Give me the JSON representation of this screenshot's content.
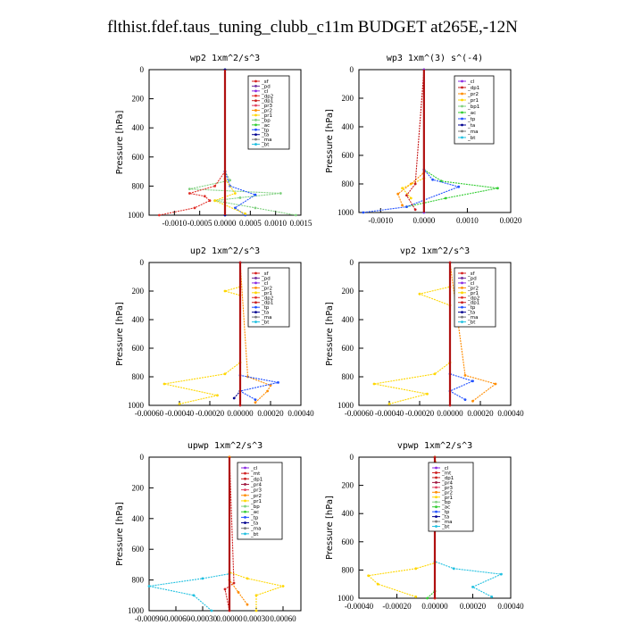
{
  "title": "flthist.fdef.taus_tuning_clubb_c11m  BUDGET at265E,-12N",
  "colors": {
    "sf": "#d62020",
    "pd": "#7030a0",
    "cl": "#8a2be2",
    "dp2": "#e0302a",
    "dp1": "#c81e1e",
    "pr3": "#e04060",
    "pr2": "#ff8c00",
    "pr1": "#ffd700",
    "bp": "#7fd07f",
    "ac": "#32cd32",
    "tp": "#2050ff",
    "ta": "#000090",
    "ma": "#7a7a7a",
    "bt": "#20c0e0",
    "mt": "#d02020",
    "pr4": "#a01840"
  },
  "chart_data": [
    {
      "type": "line",
      "title": "wp2  1xm^2/s^3",
      "ylabel": "Pressure [hPa]",
      "ylim": [
        1000,
        0
      ],
      "xlim": [
        -0.0015,
        0.0015
      ],
      "yticks": [
        "0",
        "200",
        "400",
        "600",
        "800",
        "1000"
      ],
      "xticks": [
        "-0.0010",
        "-0.0005",
        "0.0000",
        "0.0005",
        "0.0010",
        "0.0015"
      ],
      "legend": [
        "_sf",
        "_pd",
        "_cl",
        "_dp2",
        "_dp1",
        "_pr3",
        "_pr2",
        "_pr1",
        "_bp",
        "_ac",
        "_tp",
        "_ta",
        "_ma",
        "_bt"
      ],
      "series": [
        {
          "name": "_bp",
          "values": [
            [
              0.0014,
              1000
            ],
            [
              0.0006,
              950
            ],
            [
              -0.0002,
              900
            ],
            [
              0.0003,
              880
            ],
            [
              0.0011,
              850
            ],
            [
              -0.0007,
              820
            ],
            [
              0.0001,
              760
            ],
            [
              0,
              700
            ],
            [
              0,
              0
            ]
          ]
        },
        {
          "name": "_dp2",
          "values": [
            [
              -0.0013,
              1000
            ],
            [
              -0.0006,
              950
            ],
            [
              -0.0003,
              900
            ],
            [
              -0.0004,
              870
            ],
            [
              -0.0007,
              850
            ],
            [
              -0.0002,
              800
            ],
            [
              0,
              700
            ],
            [
              0,
              0
            ]
          ]
        },
        {
          "name": "_tp",
          "values": [
            [
              0.0004,
              1000
            ],
            [
              0.0002,
              950
            ],
            [
              0.0006,
              860
            ],
            [
              0.0001,
              800
            ],
            [
              0,
              700
            ],
            [
              0,
              0
            ]
          ]
        },
        {
          "name": "_pr1",
          "values": [
            [
              0.0004,
              990
            ],
            [
              -0.0002,
              900
            ],
            [
              0.0002,
              850
            ],
            [
              0,
              750
            ],
            [
              0,
              0
            ]
          ]
        },
        {
          "name": "_bt",
          "values": [
            [
              0,
              1000
            ],
            [
              0,
              0
            ]
          ]
        },
        {
          "name": "_ta",
          "values": [
            [
              0,
              1000
            ],
            [
              0,
              0
            ]
          ]
        }
      ]
    },
    {
      "type": "line",
      "title": "wp3  1xm^(3) s^(-4)",
      "ylabel": "Pressure [hPa]",
      "ylim": [
        1000,
        0
      ],
      "xlim": [
        -0.0015,
        0.002
      ],
      "yticks": [
        "0",
        "200",
        "400",
        "600",
        "800",
        "1000"
      ],
      "xticks": [
        "-0.0010",
        "0.0000",
        "0.0010",
        "0.0020"
      ],
      "legend": [
        "_cl",
        "_dp1",
        "_pr2",
        "_pr1",
        "_bp1",
        "_ac",
        "_tp",
        "_ta",
        "_ma",
        "_bt"
      ],
      "series": [
        {
          "name": "_ac",
          "values": [
            [
              -0.0004,
              960
            ],
            [
              0.0005,
              900
            ],
            [
              0.0017,
              830
            ],
            [
              0.0004,
              780
            ],
            [
              0,
              700
            ],
            [
              0,
              0
            ]
          ]
        },
        {
          "name": "_tp",
          "values": [
            [
              -0.0014,
              1000
            ],
            [
              -0.0004,
              960
            ],
            [
              0.0008,
              820
            ],
            [
              0.0002,
              770
            ],
            [
              0,
              700
            ],
            [
              0,
              0
            ]
          ]
        },
        {
          "name": "_pr2",
          "values": [
            [
              -0.0005,
              950
            ],
            [
              -0.0006,
              870
            ],
            [
              -0.0003,
              800
            ],
            [
              0,
              720
            ],
            [
              0,
              0
            ]
          ]
        },
        {
          "name": "_pr1",
          "values": [
            [
              -0.0003,
              900
            ],
            [
              -0.0005,
              830
            ],
            [
              0,
              760
            ],
            [
              0,
              0
            ]
          ]
        },
        {
          "name": "_dp1",
          "values": [
            [
              -0.0002,
              980
            ],
            [
              -0.0004,
              880
            ],
            [
              -0.0002,
              800
            ],
            [
              0,
              0
            ]
          ]
        },
        {
          "name": "_bt",
          "values": [
            [
              0,
              1000
            ],
            [
              0,
              0
            ]
          ]
        },
        {
          "name": "_cl",
          "values": [
            [
              0,
              1000
            ],
            [
              0,
              0
            ]
          ]
        }
      ]
    },
    {
      "type": "line",
      "title": "up2  1xm^2/s^3",
      "ylabel": "Pressure [hPa]",
      "ylim": [
        1000,
        0
      ],
      "xlim": [
        -0.0006,
        0.0004
      ],
      "yticks": [
        "0",
        "200",
        "400",
        "600",
        "800",
        "1000"
      ],
      "xticks": [
        "-0.00060",
        "-0.00040",
        "-0.00020",
        "0.00000",
        "0.00020",
        "0.00040"
      ],
      "legend": [
        "_sf",
        "_pd",
        "_cl",
        "_pr2",
        "_pr1",
        "_dp2",
        "_dp1",
        "_tp",
        "_ta",
        "_ma",
        "_bt"
      ],
      "series": [
        {
          "name": "_pr1",
          "values": [
            [
              -0.0004,
              990
            ],
            [
              -0.00015,
              930
            ],
            [
              -0.0005,
              850
            ],
            [
              -0.0001,
              780
            ],
            [
              0,
              700
            ],
            [
              0,
              230
            ],
            [
              -0.0001,
              200
            ],
            [
              0,
              170
            ],
            [
              0,
              0
            ]
          ]
        },
        {
          "name": "_pr2",
          "values": [
            [
              0.0001,
              980
            ],
            [
              0.00018,
              900
            ],
            [
              0.0002,
              860
            ],
            [
              5e-05,
              800
            ],
            [
              0,
              0
            ]
          ]
        },
        {
          "name": "_tp",
          "values": [
            [
              0.0001,
              960
            ],
            [
              0,
              900
            ],
            [
              0.00025,
              840
            ],
            [
              0,
              790
            ],
            [
              0,
              0
            ]
          ]
        },
        {
          "name": "_ta",
          "values": [
            [
              -4e-05,
              950
            ],
            [
              0,
              900
            ],
            [
              0,
              0
            ]
          ]
        },
        {
          "name": "_bt",
          "values": [
            [
              0,
              1000
            ],
            [
              0,
              0
            ]
          ]
        },
        {
          "name": "_sf",
          "values": [
            [
              0,
              1000
            ],
            [
              0,
              0
            ]
          ]
        }
      ]
    },
    {
      "type": "line",
      "title": "vp2  1xm^2/s^3",
      "ylabel": "Pressure [hPa]",
      "ylim": [
        1000,
        0
      ],
      "xlim": [
        -0.0006,
        0.0004
      ],
      "yticks": [
        "0",
        "200",
        "400",
        "600",
        "800",
        "1000"
      ],
      "xticks": [
        "-0.00060",
        "-0.00040",
        "-0.00020",
        "0.00000",
        "0.00020",
        "0.00040"
      ],
      "legend": [
        "_sf",
        "_pd",
        "_cl",
        "_pr2",
        "_pr1",
        "_dp2",
        "_dp1",
        "_tp",
        "_ta",
        "_ma",
        "_bt"
      ],
      "series": [
        {
          "name": "_pr1",
          "values": [
            [
              -0.0004,
              990
            ],
            [
              -0.00015,
              920
            ],
            [
              -0.0005,
              850
            ],
            [
              -0.0001,
              780
            ],
            [
              0,
              700
            ],
            [
              0,
              300
            ],
            [
              -0.0002,
              220
            ],
            [
              0,
              170
            ],
            [
              0,
              0
            ]
          ]
        },
        {
          "name": "_pr2",
          "values": [
            [
              0.00015,
              970
            ],
            [
              0.0003,
              850
            ],
            [
              0.0001,
              790
            ],
            [
              0,
              0
            ]
          ]
        },
        {
          "name": "_tp",
          "values": [
            [
              0.0001,
              960
            ],
            [
              0,
              900
            ],
            [
              0.00015,
              830
            ],
            [
              0,
              780
            ],
            [
              0,
              0
            ]
          ]
        },
        {
          "name": "_bt",
          "values": [
            [
              0,
              1000
            ],
            [
              0,
              0
            ]
          ]
        },
        {
          "name": "_sf",
          "values": [
            [
              0,
              1000
            ],
            [
              0,
              0
            ]
          ]
        }
      ]
    },
    {
      "type": "line",
      "title": "upwp  1xm^2/s^3",
      "ylabel": "Pressure [hPa]",
      "ylim": [
        1000,
        0
      ],
      "xlim": [
        -0.0009,
        0.0008
      ],
      "yticks": [
        "0",
        "200",
        "400",
        "600",
        "800",
        "1000"
      ],
      "xticks": [
        "-0.00090",
        "-0.00060",
        "-0.00030",
        "0.00000",
        "0.00030",
        "0.00060"
      ],
      "legend": [
        "_cl",
        "_mt",
        "_dp1",
        "_pr4",
        "_pr3",
        "_pr2",
        "_pr1",
        "_bp",
        "_ac",
        "_tp",
        "_ta",
        "_ma",
        "_bt"
      ],
      "series": [
        {
          "name": "_bt",
          "values": [
            [
              -0.0002,
              1000
            ],
            [
              -0.0004,
              900
            ],
            [
              -0.0009,
              840
            ],
            [
              -0.0003,
              790
            ],
            [
              0,
              760
            ],
            [
              0,
              0
            ]
          ]
        },
        {
          "name": "_pr1",
          "values": [
            [
              0.0003,
              1000
            ],
            [
              0.0003,
              900
            ],
            [
              0.0006,
              840
            ],
            [
              0.0002,
              790
            ],
            [
              0,
              750
            ],
            [
              0,
              0
            ]
          ]
        },
        {
          "name": "_mt",
          "values": [
            [
              0,
              1000
            ],
            [
              -5e-05,
              860
            ],
            [
              5e-05,
              820
            ],
            [
              0,
              0
            ]
          ]
        },
        {
          "name": "_pr2",
          "values": [
            [
              0.0002,
              960
            ],
            [
              0.0001,
              880
            ],
            [
              0,
              800
            ],
            [
              0,
              0
            ]
          ]
        }
      ]
    },
    {
      "type": "line",
      "title": "vpwp  1xm^2/s^3",
      "ylabel": "Pressure [hPa]",
      "ylim": [
        1000,
        0
      ],
      "xlim": [
        -0.0004,
        0.0004
      ],
      "yticks": [
        "0",
        "200",
        "400",
        "600",
        "800",
        "1000"
      ],
      "xticks": [
        "-0.00040",
        "-0.00020",
        "0.00000",
        "0.00020",
        "0.00040"
      ],
      "legend": [
        "_cl",
        "_mt",
        "_dp1",
        "_pr4",
        "_pr3",
        "_pr2",
        "_pr1",
        "_bp",
        "_ac",
        "_tp",
        "_ta",
        "_ma",
        "_bt"
      ],
      "series": [
        {
          "name": "_pr1",
          "values": [
            [
              -0.0001,
              990
            ],
            [
              -0.0003,
              900
            ],
            [
              -0.00035,
              840
            ],
            [
              -0.0001,
              790
            ],
            [
              0,
              750
            ],
            [
              0,
              0
            ]
          ]
        },
        {
          "name": "_bt",
          "values": [
            [
              0.0003,
              990
            ],
            [
              0.0002,
              920
            ],
            [
              0.00035,
              830
            ],
            [
              0.0001,
              790
            ],
            [
              0,
              740
            ],
            [
              0,
              0
            ]
          ]
        },
        {
          "name": "_pr2",
          "values": [
            [
              0,
              1000
            ],
            [
              0,
              200
            ],
            [
              3e-05,
              180
            ],
            [
              0,
              0
            ]
          ]
        },
        {
          "name": "_ac",
          "values": [
            [
              -4e-05,
              1000
            ],
            [
              0,
              950
            ],
            [
              0,
              0
            ]
          ]
        },
        {
          "name": "_mt",
          "values": [
            [
              0,
              1000
            ],
            [
              0,
              0
            ]
          ]
        }
      ]
    }
  ]
}
